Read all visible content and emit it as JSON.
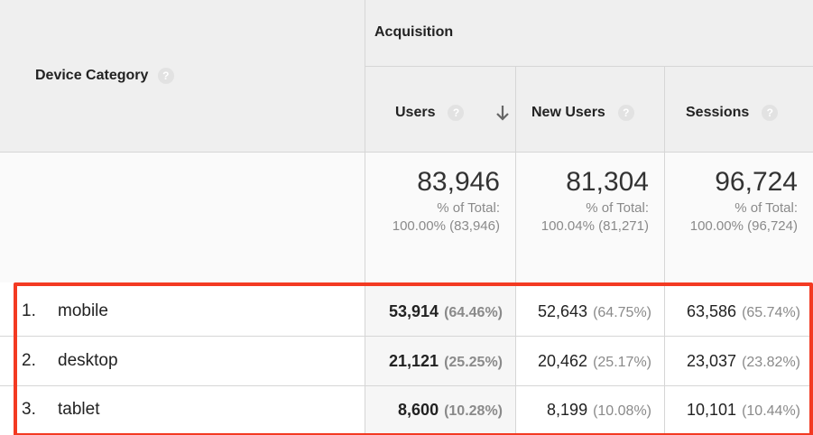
{
  "header": {
    "dimension": "Device Category",
    "group": "Acquisition",
    "help_icon": "?",
    "columns": [
      "Users",
      "New Users",
      "Sessions"
    ]
  },
  "totals": [
    {
      "value": "83,946",
      "label": "% of Total:",
      "detail": "100.00% (83,946)"
    },
    {
      "value": "81,304",
      "label": "% of Total:",
      "detail": "100.04% (81,271)"
    },
    {
      "value": "96,724",
      "label": "% of Total:",
      "detail": "100.00% (96,724)"
    }
  ],
  "rows": [
    {
      "rank": "1.",
      "device": "mobile",
      "cells": [
        {
          "value": "53,914",
          "percent": "(64.46%)"
        },
        {
          "value": "52,643",
          "percent": "(64.75%)"
        },
        {
          "value": "63,586",
          "percent": "(65.74%)"
        }
      ]
    },
    {
      "rank": "2.",
      "device": "desktop",
      "cells": [
        {
          "value": "21,121",
          "percent": "(25.25%)"
        },
        {
          "value": "20,462",
          "percent": "(25.17%)"
        },
        {
          "value": "23,037",
          "percent": "(23.82%)"
        }
      ]
    },
    {
      "rank": "3.",
      "device": "tablet",
      "cells": [
        {
          "value": "8,600",
          "percent": "(10.28%)"
        },
        {
          "value": "8,199",
          "percent": "(10.08%)"
        },
        {
          "value": "10,101",
          "percent": "(10.44%)"
        }
      ]
    }
  ]
}
